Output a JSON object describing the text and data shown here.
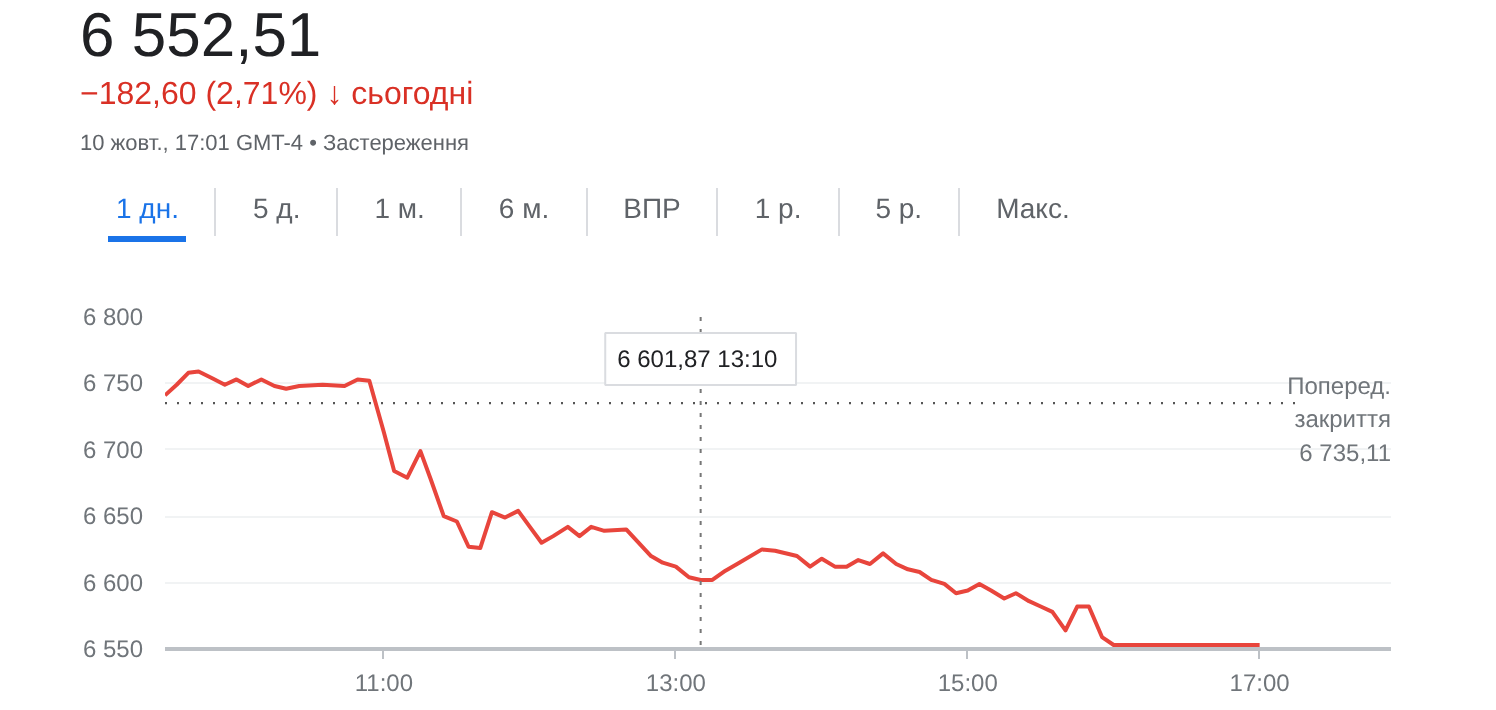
{
  "chart_data": {
    "type": "line",
    "title": "6 552,51",
    "subtitle": "−182,60 (2,71%) ↓ сьогодні",
    "annotations": [
      "10 жовт., 17:01 GMT-4 • Застереження",
      "1 дн.",
      "5 д.",
      "1 м.",
      "6 м.",
      "ВПР",
      "1 р.",
      "5 р.",
      "Макс.",
      "6 601,87  13:10"
    ],
    "x": [
      9.5,
      9.58,
      9.66,
      9.73,
      9.82,
      9.91,
      9.99,
      10.07,
      10.16,
      10.25,
      10.33,
      10.42,
      10.58,
      10.73,
      10.82,
      10.9,
      11.0,
      11.07,
      11.16,
      11.25,
      11.32,
      11.41,
      11.5,
      11.58,
      11.66,
      11.74,
      11.83,
      11.92,
      12.0,
      12.08,
      12.16,
      12.26,
      12.34,
      12.42,
      12.51,
      12.66,
      12.83,
      12.91,
      13.0,
      13.09,
      13.17,
      13.25,
      13.34,
      13.42,
      13.59,
      13.68,
      13.83,
      13.92,
      14.0,
      14.09,
      14.17,
      14.25,
      14.33,
      14.42,
      14.51,
      14.59,
      14.67,
      14.75,
      14.84,
      14.92,
      15.0,
      15.08,
      15.16,
      15.25,
      15.33,
      15.42,
      15.5,
      15.58,
      15.67,
      15.75,
      15.83,
      15.92,
      16.0,
      17.0
    ],
    "series": [
      {
        "color": "#e8453c",
        "values": [
          6741,
          6749,
          6758,
          6759,
          6754,
          6749,
          6753,
          6748,
          6753,
          6748,
          6746,
          6748,
          6749,
          6748,
          6753,
          6752,
          6713,
          6684,
          6679,
          6699,
          6678,
          6650,
          6646,
          6627,
          6626,
          6653,
          6649,
          6654,
          6642,
          6630,
          6635,
          6642,
          6635,
          6642,
          6639,
          6640,
          6620,
          6615,
          6612,
          6604,
          6602,
          6602,
          6609,
          6614,
          6625,
          6624,
          6620,
          6612,
          6618,
          6612,
          6612,
          6617,
          6614,
          6622,
          6614,
          6610,
          6608,
          6602,
          6599,
          6592,
          6594,
          6599,
          6594,
          6588,
          6592,
          6586,
          6582,
          6578,
          6564,
          6582,
          6582,
          6559,
          6553,
          6553
        ]
      }
    ],
    "xlim": [
      9.5,
      17.9
    ],
    "xticks": [
      {
        "value": 11,
        "label": "11:00"
      },
      {
        "value": 13,
        "label": "13:00"
      },
      {
        "value": 15,
        "label": "15:00"
      },
      {
        "value": 17,
        "label": "17:00"
      }
    ],
    "ylim": [
      6550,
      6800
    ],
    "yticks": [
      {
        "value": 6550,
        "label": "6 550"
      },
      {
        "value": 6600,
        "label": "6 600"
      },
      {
        "value": 6650,
        "label": "6 650"
      },
      {
        "value": 6700,
        "label": "6 700"
      },
      {
        "value": 6750,
        "label": "6 750"
      },
      {
        "value": 6800,
        "label": "6 800"
      }
    ],
    "ref_lines": [
      {
        "axis": "y",
        "value": 6735.11,
        "label": "Поперед.\nзакриття\n6 735,11",
        "line_style": "dotted",
        "color": "#555555"
      },
      {
        "axis": "x",
        "value": 13.17,
        "label": null,
        "line_style": "dotted",
        "color": "#777777"
      }
    ],
    "grid": "y",
    "line_style": "solid",
    "marker": "none"
  }
}
